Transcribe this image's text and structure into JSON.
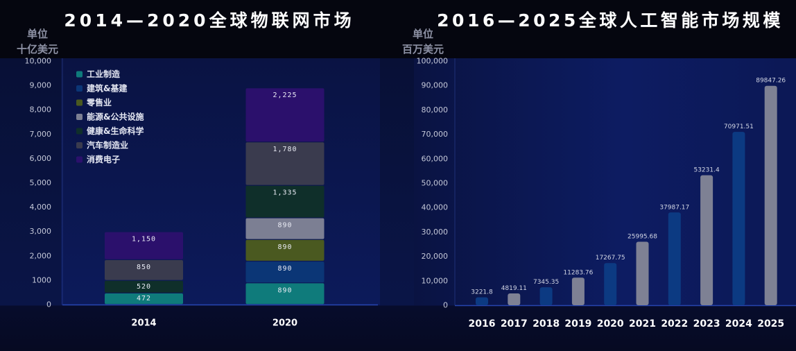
{
  "chart_data": [
    {
      "type": "bar",
      "stacked": true,
      "title": "2014—2020全球物联网市场",
      "ylabel_lines": [
        "单位",
        "十亿美元"
      ],
      "categories": [
        "2014",
        "2020"
      ],
      "ylim": [
        0,
        10000
      ],
      "yticks": [
        0,
        1000,
        2000,
        3000,
        4000,
        5000,
        6000,
        7000,
        8000,
        9000,
        10000
      ],
      "ytick_labels": [
        "0",
        "1000",
        "2,000",
        "3,000",
        "4,000",
        "5,000",
        "6,000",
        "7,000",
        "8,000",
        "9,000",
        "10,000"
      ],
      "legend_position": "top-left",
      "grid": false,
      "series": [
        {
          "name": "工业制造",
          "color": "#0f7b7b",
          "values": [
            472,
            890
          ]
        },
        {
          "name": "建筑&基建",
          "color": "#0b3676",
          "values": [
            null,
            890
          ]
        },
        {
          "name": "零售业",
          "color": "#4a5920",
          "values": [
            null,
            890
          ]
        },
        {
          "name": "能源&公共设施",
          "color": "#7c7f93",
          "values": [
            null,
            890
          ]
        },
        {
          "name": "健康&生命科学",
          "color": "#0f2f2a",
          "values": [
            520,
            1335
          ]
        },
        {
          "name": "汽车制造业",
          "color": "#3a3b4e",
          "values": [
            850,
            1780
          ]
        },
        {
          "name": "消费电子",
          "color": "#2b106c",
          "values": [
            1150,
            2225
          ]
        }
      ]
    },
    {
      "type": "bar",
      "title": "2016—2025全球人工智能市场规模",
      "ylabel_lines": [
        "单位",
        "百万美元"
      ],
      "categories": [
        "2016",
        "2017",
        "2018",
        "2019",
        "2020",
        "2021",
        "2022",
        "2023",
        "2024",
        "2025"
      ],
      "values": [
        3221.8,
        4819.11,
        7345.35,
        11283.76,
        17267.75,
        25995.68,
        37987.17,
        53231.4,
        70971.51,
        89847.26
      ],
      "ylim": [
        0,
        100000
      ],
      "yticks": [
        0,
        10000,
        20000,
        30000,
        40000,
        50000,
        60000,
        70000,
        80000,
        90000,
        100000
      ],
      "ytick_labels": [
        "0",
        "10,000",
        "20,000",
        "30,000",
        "40,000",
        "50,000",
        "60,000",
        "70,000",
        "80,000",
        "90,000",
        "100,000"
      ],
      "grid": false,
      "bar_colors": [
        "#0c3a82",
        "#7e8194",
        "#0c3a82",
        "#7e8194",
        "#0c3a82",
        "#7e8194",
        "#0c3a82",
        "#7e8194",
        "#0c3a82",
        "#7e8194"
      ]
    }
  ]
}
